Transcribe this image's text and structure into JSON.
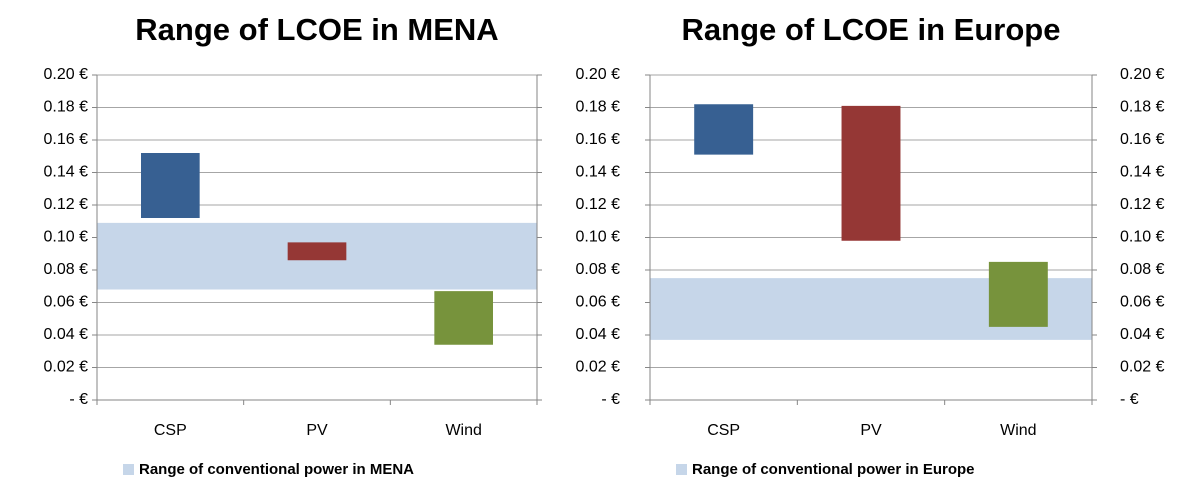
{
  "chart_data": [
    {
      "type": "range-bar",
      "title": "Range of LCOE in MENA",
      "categories": [
        "CSP",
        "PV",
        "Wind"
      ],
      "ranges": [
        [
          0.112,
          0.152
        ],
        [
          0.086,
          0.097
        ],
        [
          0.034,
          0.067
        ]
      ],
      "colors": [
        "#376092",
        "#953735",
        "#77933c"
      ],
      "band": {
        "name": "Range of conventional power in MENA",
        "range": [
          0.068,
          0.109
        ],
        "color": "#c6d6e9"
      },
      "ylim": [
        0,
        0.2
      ],
      "yticks": [
        {
          "value": 0,
          "label": "-  €"
        },
        {
          "value": 0.02,
          "label": "0.02 €"
        },
        {
          "value": 0.04,
          "label": "0.04 €"
        },
        {
          "value": 0.06,
          "label": "0.06 €"
        },
        {
          "value": 0.08,
          "label": "0.08 €"
        },
        {
          "value": 0.1,
          "label": "0.10 €"
        },
        {
          "value": 0.12,
          "label": "0.12 €"
        },
        {
          "value": 0.14,
          "label": "0.14 €"
        },
        {
          "value": 0.16,
          "label": "0.16 €"
        },
        {
          "value": 0.18,
          "label": "0.18 €"
        },
        {
          "value": 0.2,
          "label": "0.20 €"
        }
      ],
      "grid": true
    },
    {
      "type": "range-bar",
      "title": "Range of LCOE in Europe",
      "categories": [
        "CSP",
        "PV",
        "Wind"
      ],
      "ranges": [
        [
          0.151,
          0.182
        ],
        [
          0.098,
          0.181
        ],
        [
          0.045,
          0.085
        ]
      ],
      "colors": [
        "#376092",
        "#953735",
        "#77933c"
      ],
      "band": {
        "name": "Range of conventional power in Europe",
        "range": [
          0.037,
          0.075
        ],
        "color": "#c6d6e9"
      },
      "ylim": [
        0,
        0.2
      ],
      "yticks": [
        {
          "value": 0,
          "label": "-  €"
        },
        {
          "value": 0.02,
          "label": "0.02 €"
        },
        {
          "value": 0.04,
          "label": "0.04 €"
        },
        {
          "value": 0.06,
          "label": "0.06 €"
        },
        {
          "value": 0.08,
          "label": "0.08 €"
        },
        {
          "value": 0.1,
          "label": "0.10 €"
        },
        {
          "value": 0.12,
          "label": "0.12 €"
        },
        {
          "value": 0.14,
          "label": "0.14 €"
        },
        {
          "value": 0.16,
          "label": "0.16 €"
        },
        {
          "value": 0.18,
          "label": "0.18 €"
        },
        {
          "value": 0.2,
          "label": "0.20 €"
        }
      ],
      "y2lim": [
        0,
        0.2
      ],
      "y2ticks": [
        {
          "value": 0,
          "label": "-  €"
        },
        {
          "value": 0.02,
          "label": "0.02 €"
        },
        {
          "value": 0.04,
          "label": "0.04 €"
        },
        {
          "value": 0.06,
          "label": "0.06 €"
        },
        {
          "value": 0.08,
          "label": "0.08 €"
        },
        {
          "value": 0.1,
          "label": "0.10 €"
        },
        {
          "value": 0.12,
          "label": "0.12 €"
        },
        {
          "value": 0.14,
          "label": "0.14 €"
        },
        {
          "value": 0.16,
          "label": "0.16 €"
        },
        {
          "value": 0.18,
          "label": "0.18 €"
        },
        {
          "value": 0.2,
          "label": "0.20 €"
        }
      ],
      "grid": true
    }
  ]
}
